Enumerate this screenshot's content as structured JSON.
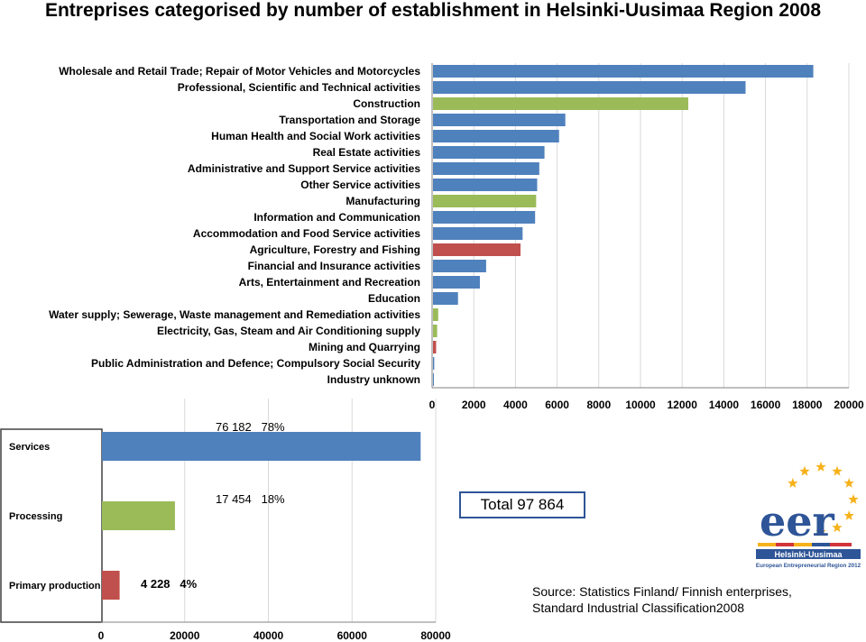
{
  "title": "Entreprises categorised by number of establishment in Helsinki-Uusimaa Region 2008",
  "colors": {
    "blue": "#4f81bd",
    "green": "#9bbb59",
    "red": "#c0504d",
    "grid": "#d9d9d9",
    "axis": "#808080"
  },
  "chart_data": [
    {
      "type": "bar",
      "orientation": "horizontal",
      "categories": [
        "Wholesale and Retail Trade; Repair of Motor Vehicles and Motorcycles",
        "Professional, Scientific and Technical activities",
        "Construction",
        "Transportation and Storage",
        "Human Health and Social Work activities",
        "Real Estate activities",
        "Administrative and Support Service activities",
        "Other Service activities",
        "Manufacturing",
        "Information and Communication",
        "Accommodation and Food Service activities",
        "Agriculture, Forestry and Fishing",
        "Financial and Insurance activities",
        "Arts, Entertainment and Recreation",
        "Education",
        "Water supply; Sewerage, Waste management and Remediation activities",
        "Electricity, Gas, Steam and Air Conditioning supply",
        "Mining and Quarrying",
        "Public Administration and Defence; Compulsory Social Security",
        "Industry unknown"
      ],
      "values": [
        18250,
        15000,
        12250,
        6350,
        6050,
        5350,
        5100,
        5000,
        4950,
        4900,
        4300,
        4200,
        2550,
        2250,
        1200,
        250,
        200,
        150,
        60,
        40
      ],
      "bar_colors": [
        "blue",
        "blue",
        "green",
        "blue",
        "blue",
        "blue",
        "blue",
        "blue",
        "green",
        "blue",
        "blue",
        "red",
        "blue",
        "blue",
        "blue",
        "green",
        "green",
        "red",
        "blue",
        "blue"
      ],
      "xlim": [
        0,
        20000
      ],
      "xticks": [
        "0",
        "2000",
        "4000",
        "6000",
        "8000",
        "10000",
        "12000",
        "14000",
        "16000",
        "18000",
        "20000"
      ],
      "grid": true
    },
    {
      "type": "bar",
      "orientation": "horizontal",
      "categories": [
        "Services",
        "Processing",
        "Primary production"
      ],
      "values": [
        76182,
        17454,
        4228
      ],
      "bar_colors": [
        "blue",
        "green",
        "red"
      ],
      "data_labels": [
        "76 182   78%",
        "17 454   18%",
        "4 228   4%"
      ],
      "xlim": [
        0,
        80000
      ],
      "xticks": [
        "0",
        "20000",
        "40000",
        "60000",
        "80000"
      ],
      "grid": true
    }
  ],
  "total_label": "Total 97 864",
  "source_line1": "Source: Statistics Finland/ Finnish enterprises,",
  "source_line2": "Standard Industrial Classification2008",
  "logo": {
    "text_main": "eer",
    "text_region": "Helsinki-Uusimaa",
    "text_sub": "European Entrepreneurial Region 2012"
  }
}
